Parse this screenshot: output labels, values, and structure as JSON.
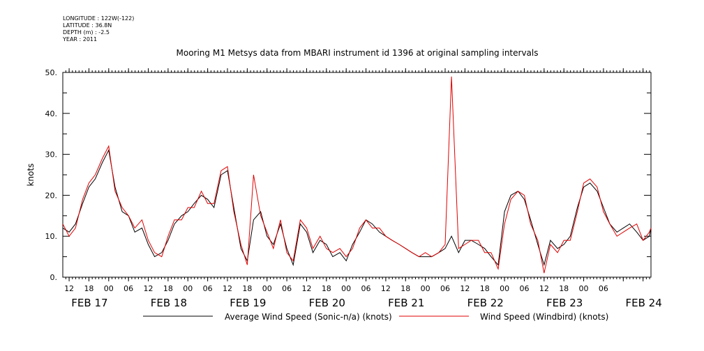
{
  "meta": {
    "longitude": "LONGITUDE : 122W(-122)",
    "latitude": "LATITUDE : 36.8N",
    "depth": "DEPTH (m) : -2.5",
    "year": "YEAR : 2011"
  },
  "chart_data": {
    "type": "line",
    "title": "Mooring M1 Metsys data from MBARI instrument id 1396 at original sampling intervals",
    "ylabel": "knots",
    "xlabel": "",
    "ylim": [
      0,
      50
    ],
    "xlim": [
      -0.33,
      7.1
    ],
    "y_ticks": [
      "0.",
      "10.",
      "20.",
      "30.",
      "40.",
      "50."
    ],
    "hour_ticks": [
      "12",
      "18",
      "00",
      "06",
      "12",
      "18",
      "00",
      "06",
      "12",
      "18",
      "00",
      "06",
      "12",
      "18",
      "00",
      "06",
      "12",
      "18",
      "00",
      "06",
      "12",
      "18",
      "00",
      "06",
      "12",
      "18",
      "00",
      "06"
    ],
    "day_labels": [
      "FEB 17",
      "FEB 18",
      "FEB 19",
      "FEB 20",
      "FEB 21",
      "FEB 22",
      "FEB 23",
      "FEB 24"
    ],
    "grid": false,
    "legend_position": "bottom",
    "colors": {
      "series1": "#000000",
      "series2": "#e00000"
    },
    "series": [
      {
        "name": "Average Wind Speed (Sonic-n/a) (knots)",
        "x": [
          -0.33,
          -0.25,
          -0.17,
          -0.08,
          0.0,
          0.08,
          0.17,
          0.25,
          0.33,
          0.42,
          0.5,
          0.58,
          0.67,
          0.75,
          0.83,
          0.92,
          1.0,
          1.08,
          1.17,
          1.25,
          1.33,
          1.42,
          1.5,
          1.58,
          1.67,
          1.75,
          1.83,
          1.92,
          2.0,
          2.08,
          2.17,
          2.25,
          2.33,
          2.42,
          2.5,
          2.58,
          2.67,
          2.75,
          2.83,
          2.92,
          3.0,
          3.08,
          3.17,
          3.25,
          3.33,
          3.42,
          3.5,
          3.58,
          3.67,
          3.75,
          3.83,
          3.92,
          4.0,
          4.08,
          4.17,
          4.25,
          4.33,
          4.42,
          4.5,
          4.58,
          4.67,
          4.75,
          4.83,
          4.92,
          5.0,
          5.08,
          5.17,
          5.25,
          5.33,
          5.42,
          5.5,
          5.58,
          5.67,
          5.75,
          5.83,
          5.92,
          6.0,
          6.08,
          6.17,
          6.25,
          6.33,
          6.42,
          6.5,
          6.58,
          6.67,
          6.75,
          6.83,
          6.92,
          7.0,
          7.08,
          7.1
        ],
        "y": [
          12,
          11,
          13,
          18,
          22,
          24,
          28,
          31,
          22,
          16,
          15,
          11,
          12,
          8,
          5,
          6,
          9,
          13,
          15,
          16,
          18,
          20,
          19,
          17,
          25,
          26,
          17,
          7,
          4,
          14,
          16,
          10,
          8,
          13,
          7,
          3,
          13,
          11,
          6,
          9,
          8,
          5,
          6,
          4,
          8,
          11,
          14,
          13,
          11,
          10,
          9,
          8,
          7,
          6,
          5,
          5,
          5,
          6,
          7,
          10,
          6,
          9,
          9,
          8,
          7,
          5,
          3,
          16,
          20,
          21,
          19,
          14,
          8,
          3,
          9,
          7,
          8,
          10,
          17,
          22,
          23,
          21,
          17,
          13,
          11,
          12,
          13,
          11,
          9,
          10,
          12
        ]
      },
      {
        "name": "Wind Speed (Windbird) (knots)",
        "x": [
          -0.33,
          -0.25,
          -0.17,
          -0.08,
          0.0,
          0.08,
          0.17,
          0.25,
          0.33,
          0.42,
          0.5,
          0.58,
          0.67,
          0.75,
          0.83,
          0.92,
          1.0,
          1.08,
          1.17,
          1.25,
          1.33,
          1.42,
          1.5,
          1.58,
          1.67,
          1.75,
          1.83,
          1.92,
          2.0,
          2.08,
          2.17,
          2.25,
          2.33,
          2.42,
          2.5,
          2.58,
          2.67,
          2.75,
          2.83,
          2.92,
          3.0,
          3.08,
          3.17,
          3.25,
          3.33,
          3.42,
          3.5,
          3.58,
          3.67,
          3.75,
          3.83,
          3.92,
          4.0,
          4.08,
          4.17,
          4.25,
          4.33,
          4.42,
          4.5,
          4.58,
          4.67,
          4.75,
          4.83,
          4.92,
          5.0,
          5.08,
          5.17,
          5.25,
          5.33,
          5.42,
          5.5,
          5.58,
          5.67,
          5.75,
          5.83,
          5.92,
          6.0,
          6.08,
          6.17,
          6.25,
          6.33,
          6.42,
          6.5,
          6.58,
          6.67,
          6.75,
          6.83,
          6.92,
          7.0,
          7.08,
          7.1
        ],
        "y": [
          13,
          10,
          12,
          19,
          23,
          25,
          29,
          32,
          21,
          17,
          15,
          12,
          14,
          9,
          6,
          5,
          10,
          14,
          14,
          17,
          17,
          21,
          18,
          18,
          26,
          27,
          16,
          8,
          3,
          25,
          15,
          11,
          7,
          14,
          6,
          4,
          14,
          12,
          7,
          10,
          7,
          6,
          7,
          5,
          7,
          12,
          14,
          12,
          12,
          10,
          9,
          8,
          7,
          6,
          5,
          6,
          5,
          6,
          8,
          49,
          7,
          8,
          9,
          9,
          6,
          6,
          2,
          13,
          19,
          21,
          20,
          13,
          9,
          1,
          8,
          6,
          9,
          9,
          16,
          23,
          24,
          22,
          16,
          13,
          10,
          11,
          12,
          13,
          9,
          11,
          12
        ]
      }
    ]
  }
}
